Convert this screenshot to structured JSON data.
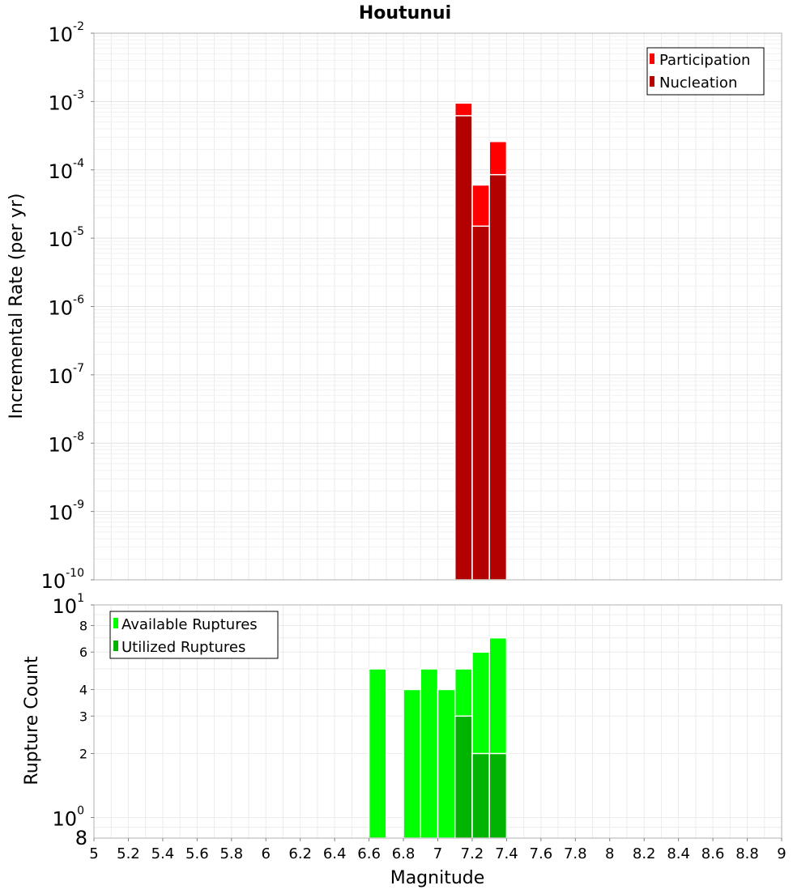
{
  "chart_data": [
    {
      "type": "bar",
      "title": "Houtunui",
      "xlabel": "",
      "ylabel": "Incremental Rate (per yr)",
      "xlim": [
        5,
        9
      ],
      "ylim": [
        1e-10,
        0.01
      ],
      "yscale": "log",
      "grid": true,
      "legend_position": "top-right",
      "y_tick_labels": [
        {
          "base": "10",
          "exp": "-2",
          "value": 0.01
        },
        {
          "base": "10",
          "exp": "-3",
          "value": 0.001
        },
        {
          "base": "10",
          "exp": "-4",
          "value": 0.0001
        },
        {
          "base": "10",
          "exp": "-5",
          "value": 1e-05
        },
        {
          "base": "10",
          "exp": "-6",
          "value": 1e-06
        },
        {
          "base": "10",
          "exp": "-7",
          "value": 1e-07
        },
        {
          "base": "10",
          "exp": "-8",
          "value": 1e-08
        },
        {
          "base": "10",
          "exp": "-9",
          "value": 1e-09
        },
        {
          "base": "10",
          "exp": "-10",
          "value": 1e-10
        }
      ],
      "bin_width": 0.1,
      "series": [
        {
          "name": "Participation",
          "color": "#ff0000",
          "x": [
            7.15,
            7.25,
            7.35
          ],
          "values": [
            0.00095,
            6e-05,
            0.00026
          ]
        },
        {
          "name": "Nucleation",
          "color": "#b30000",
          "x": [
            7.15,
            7.25,
            7.35
          ],
          "values": [
            0.00062,
            1.5e-05,
            8.5e-05
          ]
        }
      ]
    },
    {
      "type": "bar",
      "title": "",
      "xlabel": "Magnitude",
      "ylabel": "Rupture Count",
      "xlim": [
        5,
        9
      ],
      "ylim": [
        0.8,
        10
      ],
      "yscale": "log",
      "grid": true,
      "legend_position": "top-left",
      "x_tick_labels": [
        "5",
        "5.2",
        "5.4",
        "5.6",
        "5.8",
        "6",
        "6.2",
        "6.4",
        "6.6",
        "6.8",
        "7",
        "7.2",
        "7.4",
        "7.6",
        "7.8",
        "8",
        "8.2",
        "8.4",
        "8.6",
        "8.8",
        "9"
      ],
      "y_tick_labels_small": [
        {
          "label": "8",
          "value": 8
        },
        {
          "label": "6",
          "value": 6
        },
        {
          "label": "4",
          "value": 4
        },
        {
          "label": "3",
          "value": 3
        },
        {
          "label": "2",
          "value": 2
        }
      ],
      "y_tick_labels_major": [
        {
          "base": "10",
          "exp": "1",
          "value": 10
        },
        {
          "base": "10",
          "exp": "0",
          "value": 1
        }
      ],
      "y_bottom_label": {
        "label": "8",
        "value": 0.8
      },
      "bin_width": 0.1,
      "series": [
        {
          "name": "Available Ruptures",
          "color": "#00ff00",
          "x": [
            6.65,
            6.85,
            6.95,
            7.05,
            7.15,
            7.25,
            7.35
          ],
          "values": [
            5,
            4,
            5,
            4,
            5,
            6,
            7
          ]
        },
        {
          "name": "Utilized Ruptures",
          "color": "#00b300",
          "x": [
            7.15,
            7.25,
            7.35
          ],
          "values": [
            3,
            2,
            2
          ]
        }
      ]
    }
  ]
}
